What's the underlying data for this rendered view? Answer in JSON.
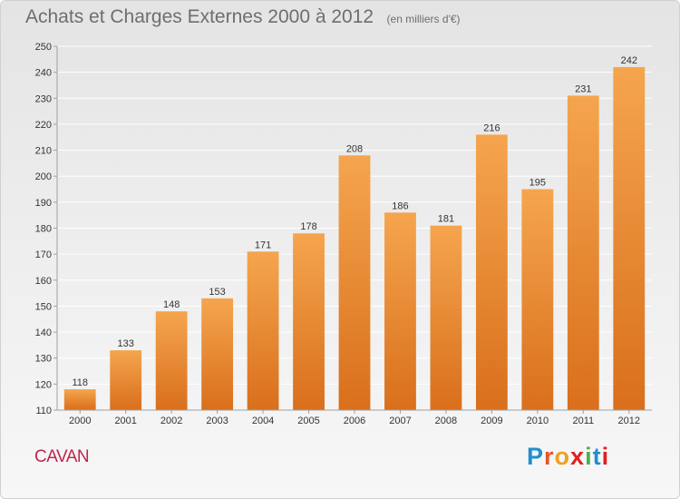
{
  "header": {
    "title": "Achats et Charges Externes 2000 à 2012",
    "unit": "(en milliers d'€)"
  },
  "footer": {
    "town": "CAVAN",
    "brand": "Proxiti",
    "brand_colors": [
      "#1f8fd0",
      "#e8542a",
      "#f0a020",
      "#e02020",
      "#4caf50",
      "#1f8fd0",
      "#e02020"
    ]
  },
  "colors": {
    "bar_top": "#f5a54e",
    "bar_bottom": "#d96f1c",
    "axis": "#a0a0a0",
    "grid": "#ffffff",
    "text": "#333333"
  },
  "chart_data": {
    "type": "bar",
    "categories": [
      "2000",
      "2001",
      "2002",
      "2003",
      "2004",
      "2005",
      "2006",
      "2007",
      "2008",
      "2009",
      "2010",
      "2011",
      "2012"
    ],
    "values": [
      118,
      133,
      148,
      153,
      171,
      178,
      208,
      186,
      181,
      216,
      195,
      231,
      242
    ],
    "ylim": [
      110,
      250
    ],
    "yticks": [
      110,
      120,
      130,
      140,
      150,
      160,
      170,
      180,
      190,
      200,
      210,
      220,
      230,
      240,
      250
    ],
    "grid": true,
    "data_labels": true
  }
}
